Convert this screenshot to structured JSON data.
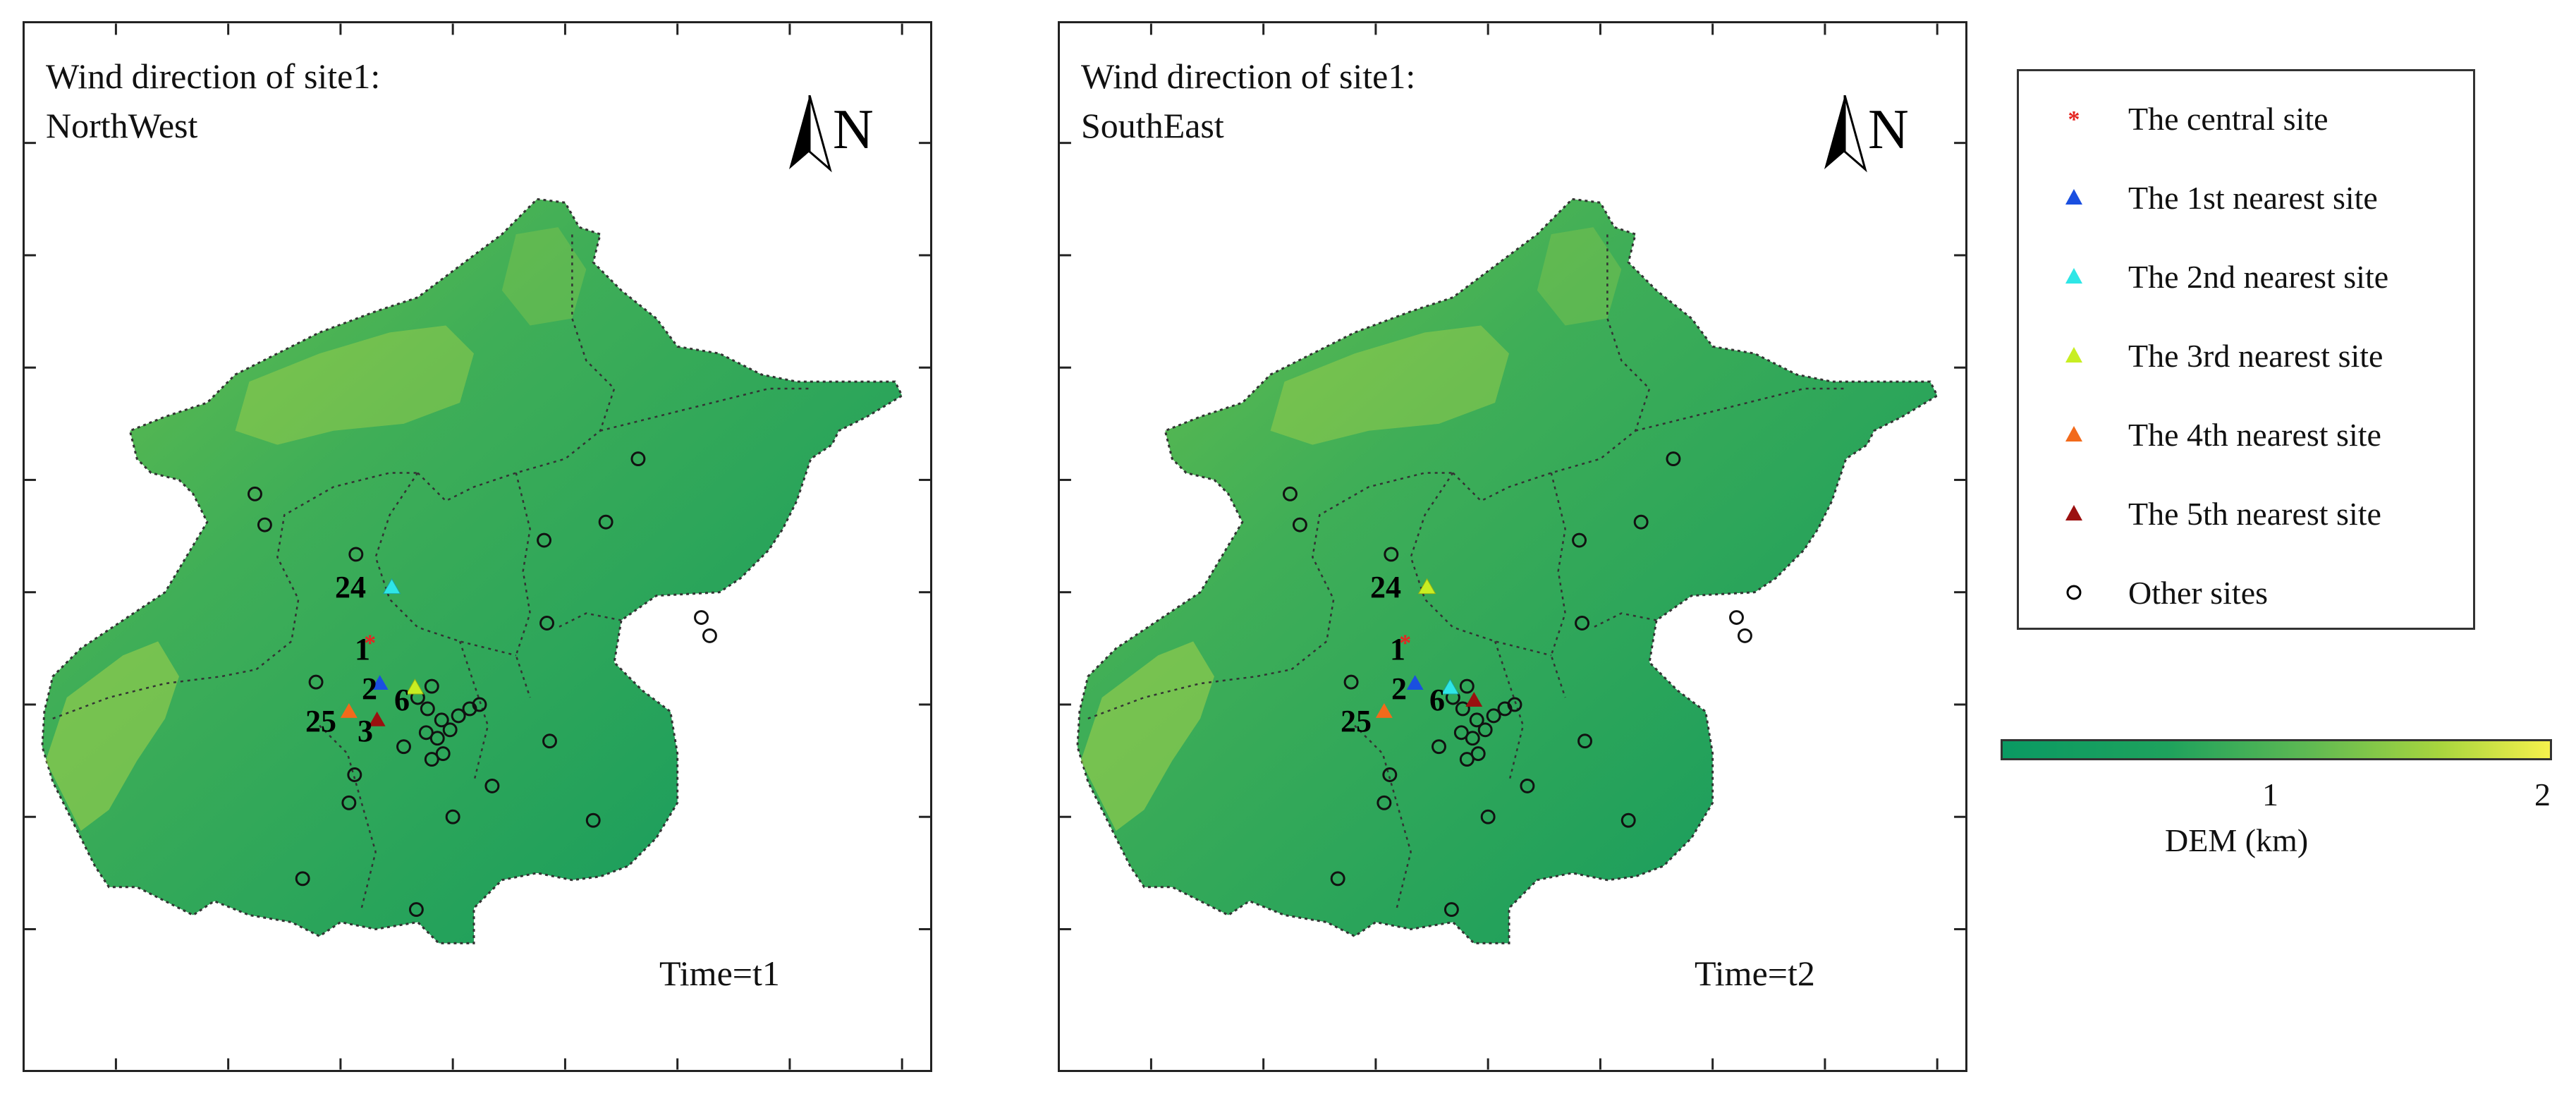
{
  "panels": [
    {
      "title_line1": "Wind direction of site1:",
      "title_line2": "NorthWest",
      "north": "N",
      "time": "Time=t1",
      "site_labels": [
        "1",
        "2",
        "3",
        "6",
        "24",
        "25"
      ]
    },
    {
      "title_line1": "Wind direction of site1:",
      "title_line2": "SouthEast",
      "north": "N",
      "time": "Time=t2",
      "site_labels": [
        "1",
        "2",
        "6",
        "24",
        "25"
      ]
    }
  ],
  "legend": {
    "items": [
      {
        "label": "The central site",
        "marker": "asterisk",
        "color": "#e52521"
      },
      {
        "label": "The 1st nearest site",
        "marker": "triangle",
        "color": "#1a4fe0"
      },
      {
        "label": "The 2nd nearest site",
        "marker": "triangle",
        "color": "#2ee6e6"
      },
      {
        "label": "The 3rd nearest site",
        "marker": "triangle",
        "color": "#c8ee22"
      },
      {
        "label": "The 4th nearest site",
        "marker": "triangle",
        "color": "#f26a1b"
      },
      {
        "label": "The 5th nearest site",
        "marker": "triangle",
        "color": "#9b1010"
      },
      {
        "label": "Other sites",
        "marker": "circle",
        "color": "#000000"
      }
    ]
  },
  "colorbar": {
    "label": "DEM (km)",
    "tick_1": "1",
    "tick_2": "2",
    "colors": [
      "#0a9a63",
      "#5cb853",
      "#f6f14c"
    ]
  },
  "colors": {
    "terrain_low": "#0a9a63",
    "terrain_mid": "#3fae57",
    "terrain_high": "#d9e648"
  }
}
